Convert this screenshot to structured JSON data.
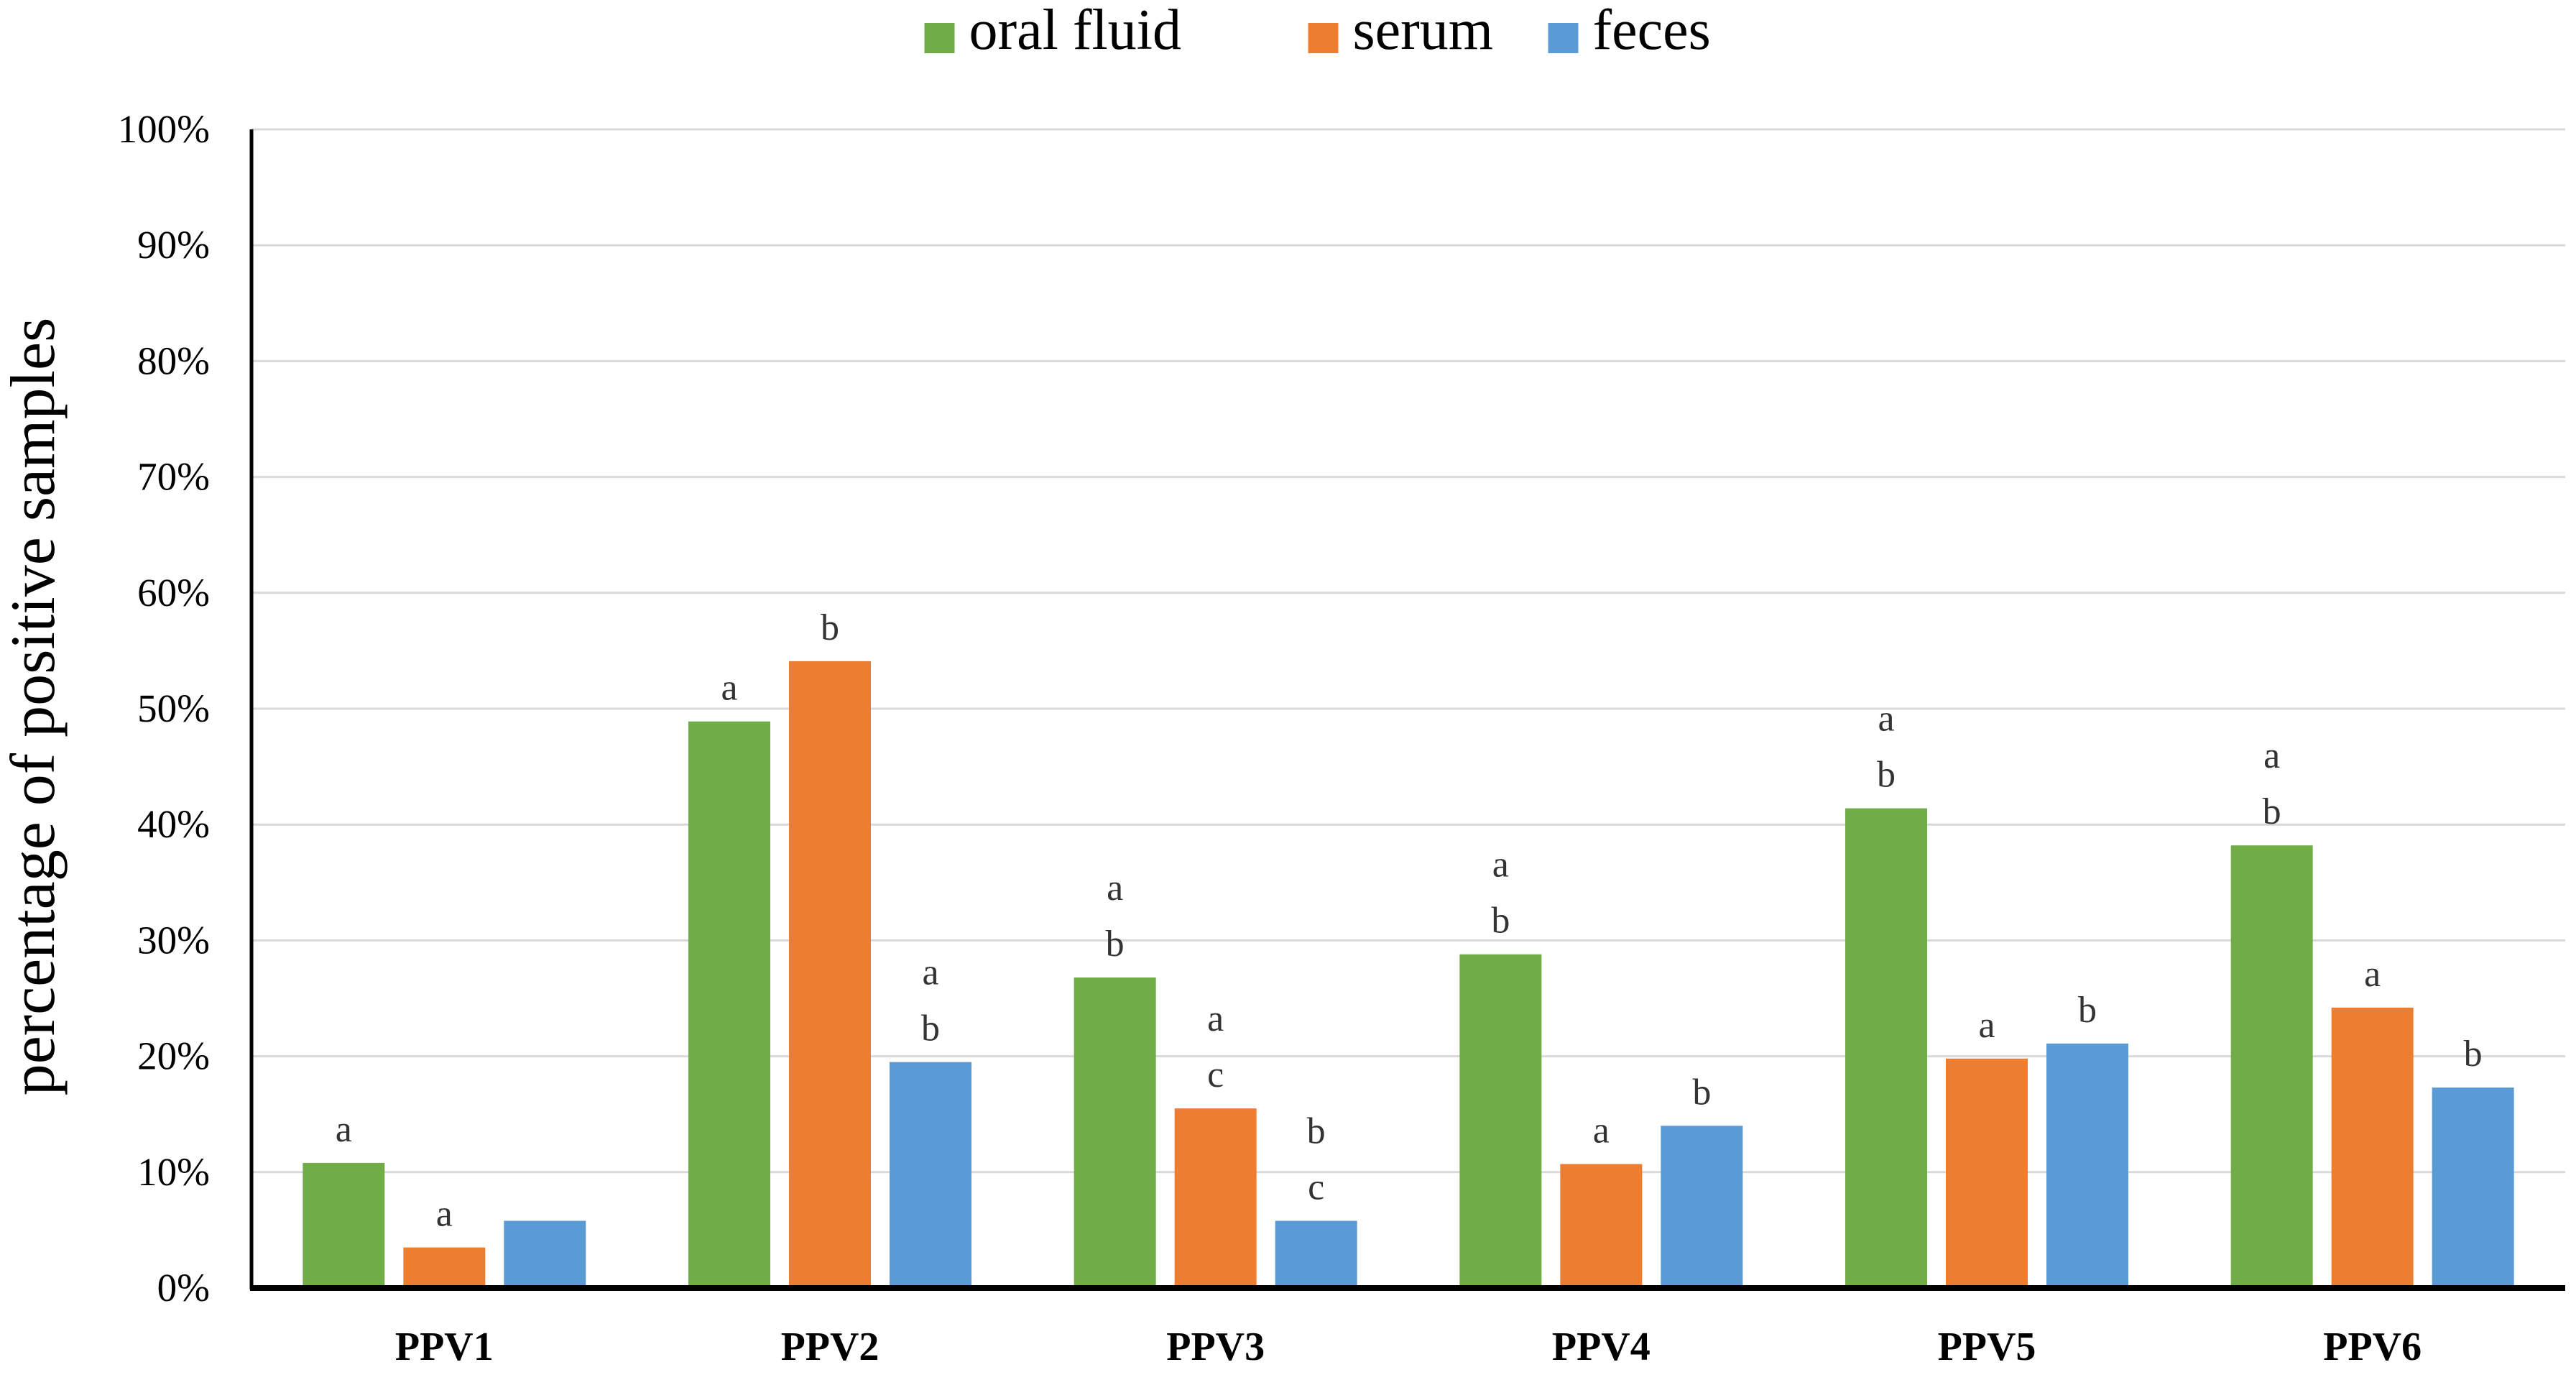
{
  "chart_data": {
    "type": "bar",
    "title": "",
    "xlabel": "",
    "ylabel": "percentage of positive samples",
    "ylim": [
      0,
      100
    ],
    "y_ticks": [
      "0%",
      "10%",
      "20%",
      "30%",
      "40%",
      "50%",
      "60%",
      "70%",
      "80%",
      "90%",
      "100%"
    ],
    "grid": true,
    "legend_position": "top-center",
    "categories": [
      "PPV1",
      "PPV2",
      "PPV3",
      "PPV4",
      "PPV5",
      "PPV6"
    ],
    "series": [
      {
        "name": "oral fluid",
        "color": "#70ad47",
        "values": [
          10.8,
          48.9,
          26.8,
          28.8,
          41.4,
          38.2
        ],
        "labels": [
          [
            "a"
          ],
          [
            "a"
          ],
          [
            "a",
            "b"
          ],
          [
            "a",
            "b"
          ],
          [
            "a",
            "b"
          ],
          [
            "a",
            "b"
          ]
        ]
      },
      {
        "name": "serum",
        "color": "#ed7d31",
        "values": [
          3.5,
          54.1,
          15.5,
          10.7,
          19.8,
          24.2
        ],
        "labels": [
          [
            "a"
          ],
          [
            "b"
          ],
          [
            "a",
            "c"
          ],
          [
            "a"
          ],
          [
            "a"
          ],
          [
            "a"
          ]
        ]
      },
      {
        "name": "feces",
        "color": "#5b9bd5",
        "values": [
          5.8,
          19.5,
          5.8,
          14.0,
          21.1,
          17.3
        ],
        "labels": [
          [],
          [
            "a",
            "b"
          ],
          [
            "b",
            "c"
          ],
          [
            "b"
          ],
          [
            "b"
          ],
          [
            "b"
          ]
        ]
      }
    ]
  }
}
